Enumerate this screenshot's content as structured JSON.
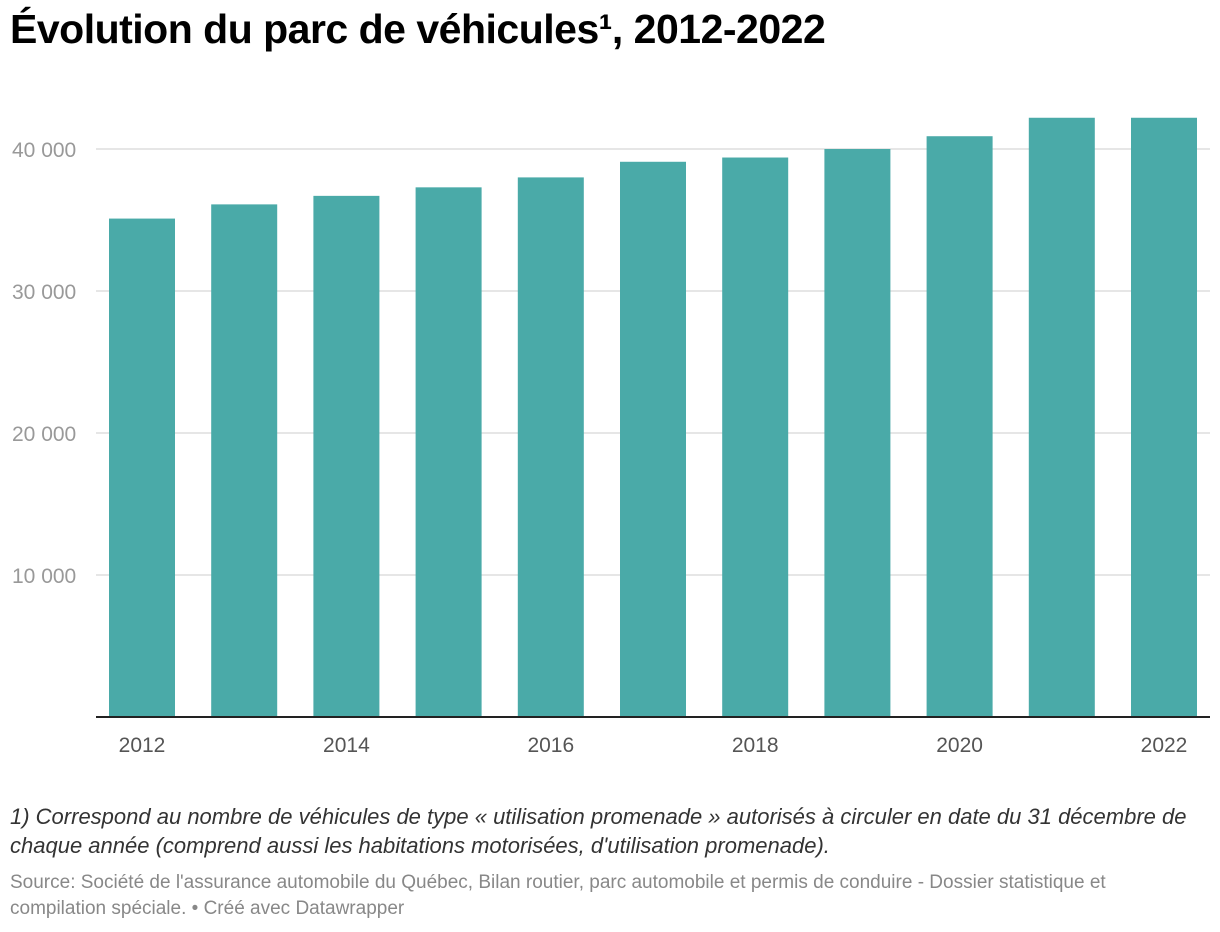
{
  "title": "Évolution du parc de véhicules¹, 2012-2022",
  "footnote": "1) Correspond au nombre de véhicules de type « utilisation promenade » autorisés à circuler en date du 31 décembre de chaque année (comprend aussi les habitations motorisées, d'utilisation promenade).",
  "source": "Source: Société de l'assurance automobile du Québec, Bilan routier, parc automobile et permis de conduire - Dossier statistique et compilation spéciale. • Créé avec Datawrapper",
  "colors": {
    "bar": "#4aaaa8",
    "grid": "#dddddd",
    "tick": "#999999",
    "axis": "#222222",
    "xlabel": "#555555"
  },
  "chart_data": {
    "type": "bar",
    "title": "Évolution du parc de véhicules¹, 2012-2022",
    "categories": [
      "2012",
      "2013",
      "2014",
      "2015",
      "2016",
      "2017",
      "2018",
      "2019",
      "2020",
      "2021",
      "2022"
    ],
    "x_tick_labels": [
      "2012",
      "2014",
      "2016",
      "2018",
      "2020",
      "2022"
    ],
    "values": [
      35100,
      36100,
      36700,
      37300,
      38000,
      39100,
      39400,
      40000,
      40900,
      42200,
      42200
    ],
    "ylim": [
      0,
      44000
    ],
    "y_ticks": [
      10000,
      20000,
      30000,
      40000
    ],
    "y_tick_labels": [
      "10 000",
      "20 000",
      "30 000",
      "40 000"
    ],
    "grid": true,
    "legend": "none"
  }
}
